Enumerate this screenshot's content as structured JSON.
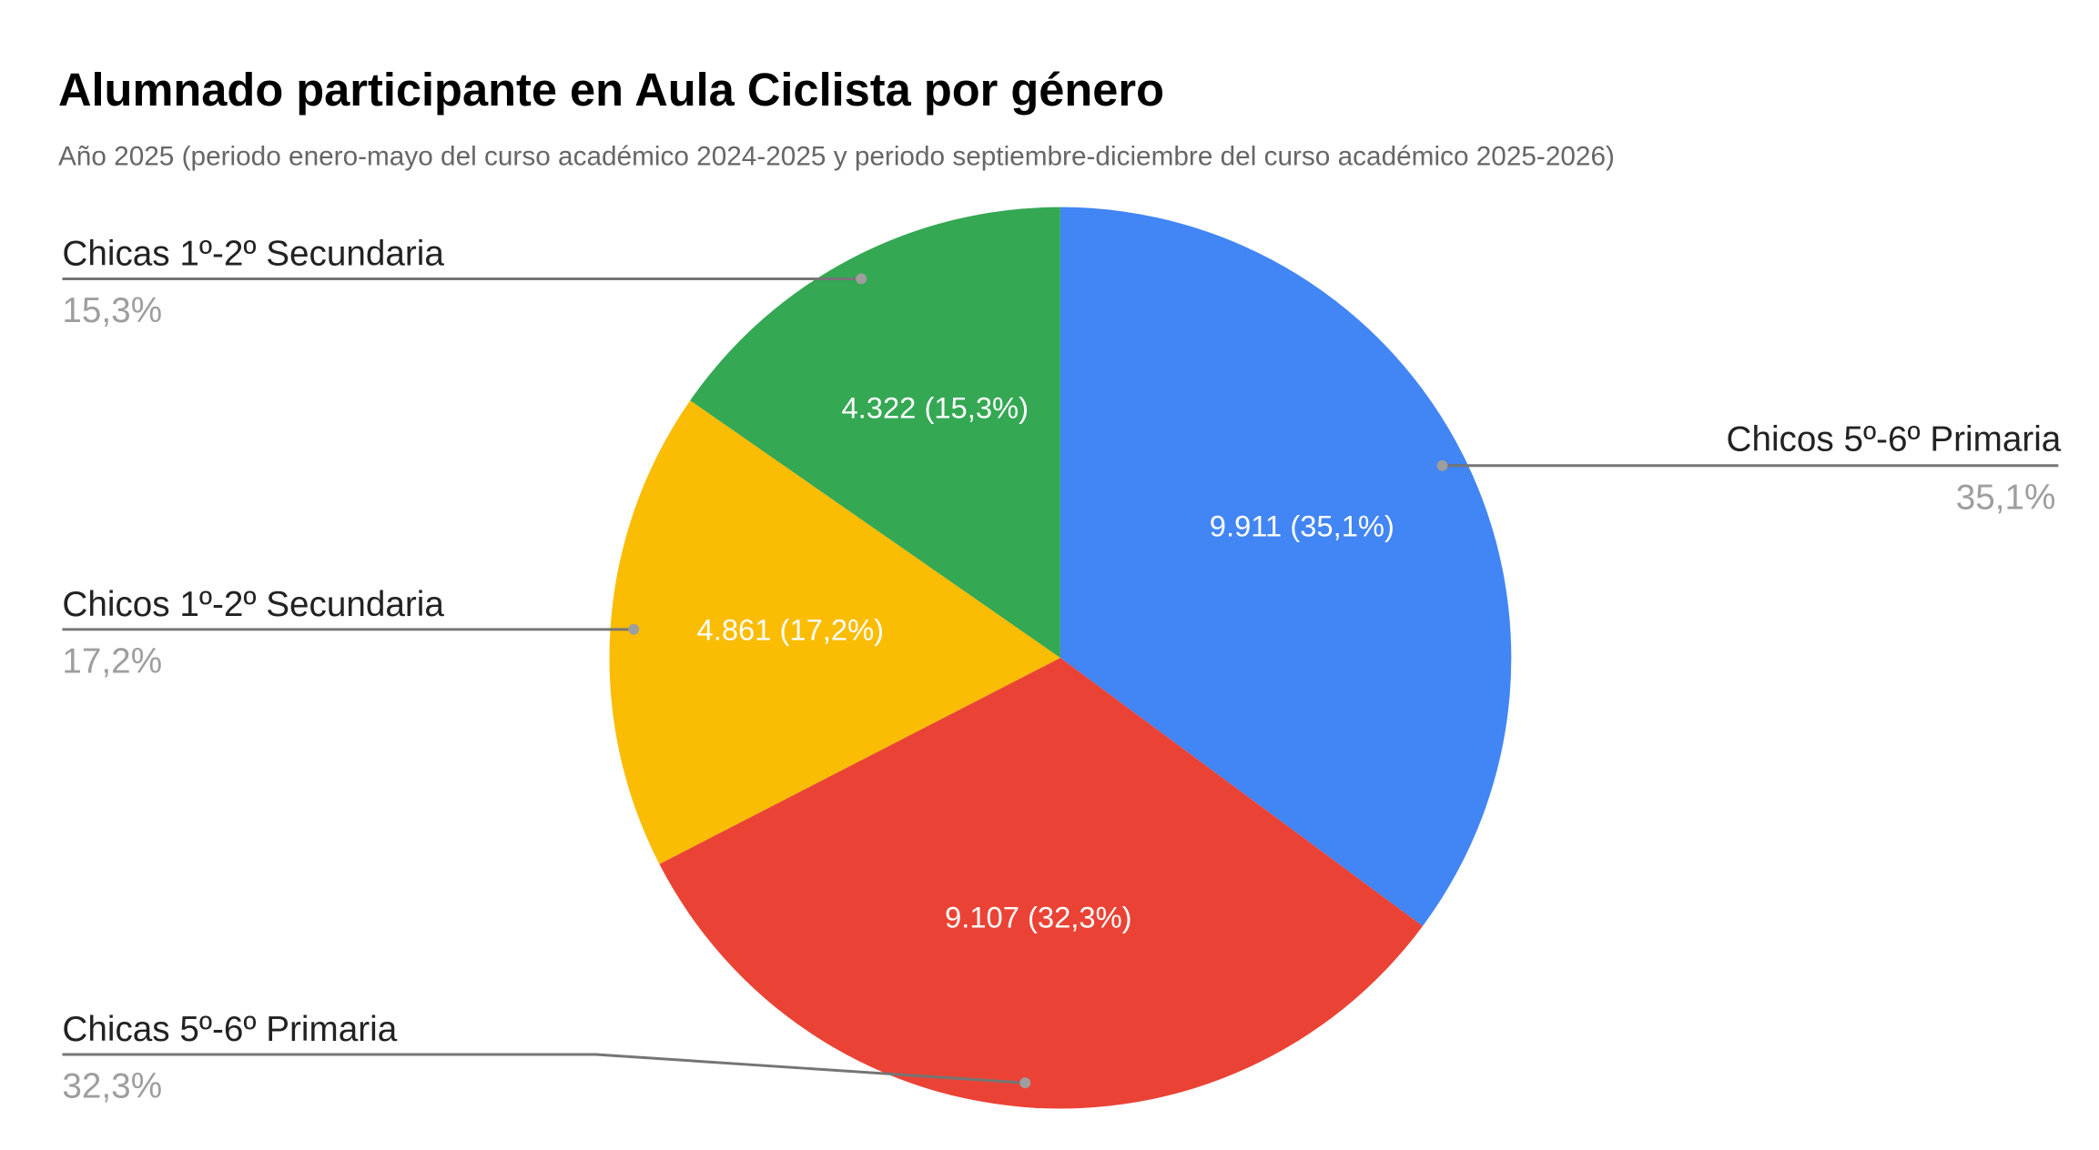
{
  "chart_data": {
    "type": "pie",
    "title": "Alumnado participante en Aula Ciclista por género",
    "subtitle": "Año 2025 (periodo enero-mayo del curso académico 2024-2025 y periodo septiembre-diciembre del curso académico 2025-2026)",
    "slices": [
      {
        "label": "Chicos 5º-6º Primaria",
        "value": 9911,
        "percent": 35.1,
        "value_label": "9.911 (35,1%)",
        "percent_label": "35,1%",
        "color": "#4285F4"
      },
      {
        "label": "Chicas 5º-6º Primaria",
        "value": 9107,
        "percent": 32.3,
        "value_label": "9.107 (32,3%)",
        "percent_label": "32,3%",
        "color": "#EA4335"
      },
      {
        "label": "Chicos 1º-2º Secundaria",
        "value": 4861,
        "percent": 17.2,
        "value_label": "4.861 (17,2%)",
        "percent_label": "17,2%",
        "color": "#FBBC04"
      },
      {
        "label": "Chicas 1º-2º Secundaria",
        "value": 4322,
        "percent": 15.3,
        "value_label": "4.322 (15,3%)",
        "percent_label": "15,3%",
        "color": "#34A853"
      }
    ]
  }
}
